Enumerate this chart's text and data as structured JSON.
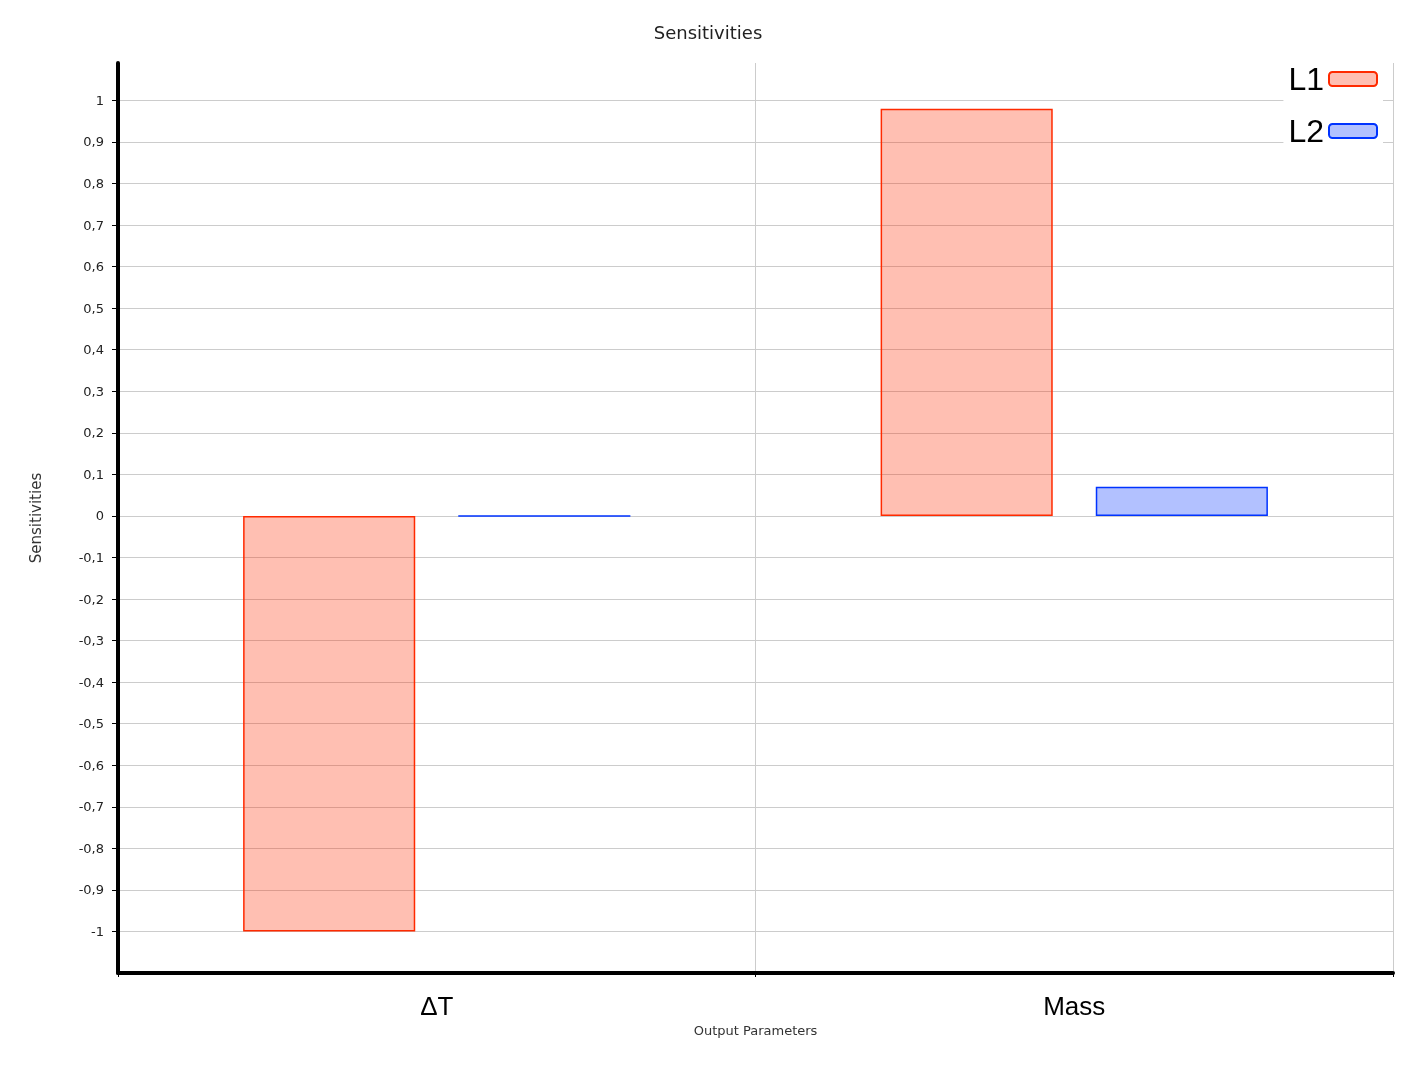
{
  "chart_data": {
    "type": "bar",
    "title": "Sensitivities",
    "xlabel": "Output Parameters",
    "ylabel": "Sensitivities",
    "categories": [
      "ΔT",
      "Mass"
    ],
    "series": [
      {
        "name": "L1",
        "color": "#ff2a00",
        "values": [
          -1.0,
          0.98
        ]
      },
      {
        "name": "L2",
        "color": "#0033ff",
        "values": [
          0.0,
          0.07
        ]
      }
    ],
    "ylim": [
      -1.1,
      1.09
    ],
    "yticks": [
      {
        "value": -1,
        "label": "-1"
      },
      {
        "value": -0.9,
        "label": "-0,9"
      },
      {
        "value": -0.8,
        "label": "-0,8"
      },
      {
        "value": -0.7,
        "label": "-0,7"
      },
      {
        "value": -0.6,
        "label": "-0,6"
      },
      {
        "value": -0.5,
        "label": "-0,5"
      },
      {
        "value": -0.4,
        "label": "-0,4"
      },
      {
        "value": -0.3,
        "label": "-0,3"
      },
      {
        "value": -0.2,
        "label": "-0,2"
      },
      {
        "value": -0.1,
        "label": "-0,1"
      },
      0,
      {
        "value": 0.1,
        "label": "0,1"
      },
      {
        "value": 0.2,
        "label": "0,2"
      },
      {
        "value": 0.3,
        "label": "0,3"
      },
      {
        "value": 0.4,
        "label": "0,4"
      },
      {
        "value": 0.5,
        "label": "0,5"
      },
      {
        "value": 0.6,
        "label": "0,6"
      },
      {
        "value": 0.7,
        "label": "0,7"
      },
      {
        "value": 0.8,
        "label": "0,8"
      },
      {
        "value": 0.9,
        "label": "0,9"
      },
      1
    ],
    "grid": true,
    "legend": "top right"
  }
}
